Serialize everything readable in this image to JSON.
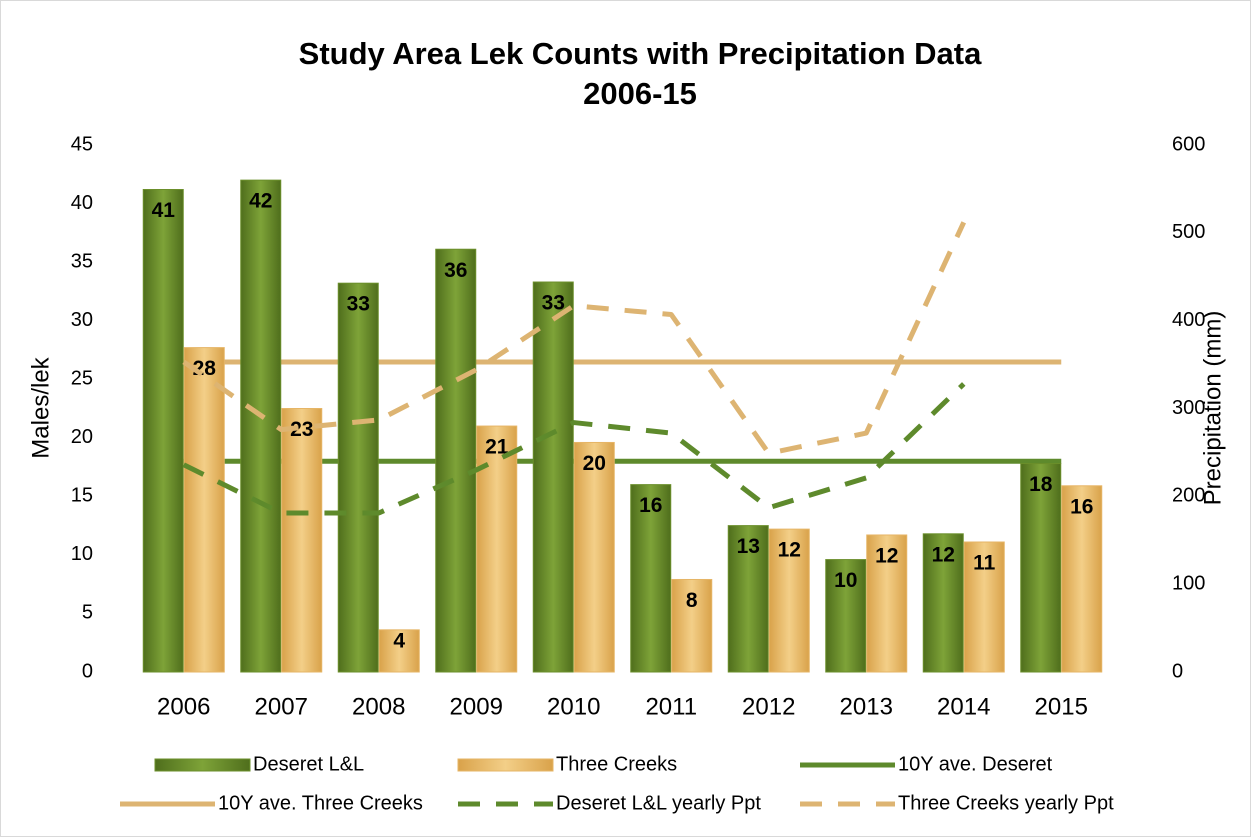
{
  "chart_data": {
    "type": "bar",
    "title": "Study Area Lek Counts with Precipitation Data",
    "subtitle": "2006-15",
    "ylabel": "Males/lek",
    "y2label": "Precipitation (mm)",
    "categories": [
      "2006",
      "2007",
      "2008",
      "2009",
      "2010",
      "2011",
      "2012",
      "2013",
      "2014",
      "2015"
    ],
    "ylim": [
      0,
      45
    ],
    "yticks": [
      0,
      5,
      10,
      15,
      20,
      25,
      30,
      35,
      40,
      45
    ],
    "y2lim": [
      0,
      600
    ],
    "y2ticks": [
      0,
      100,
      200,
      300,
      400,
      500,
      600
    ],
    "series": [
      {
        "name": "Deseret L&L",
        "type": "bar",
        "color": "#6b8f2b",
        "values": [
          41.2,
          42,
          33.2,
          36.1,
          33.3,
          16,
          12.5,
          9.6,
          11.8,
          17.8
        ],
        "value_labels": [
          "41",
          "42",
          "33",
          "36",
          "33",
          "16",
          "13",
          "10",
          "12",
          "18"
        ]
      },
      {
        "name": "Three Creeks",
        "type": "bar",
        "color": "#e6b566",
        "values": [
          27.7,
          22.5,
          3.6,
          21,
          19.6,
          7.9,
          12.2,
          11.7,
          11.1,
          15.9
        ],
        "value_labels": [
          "28",
          "23",
          "4",
          "21",
          "20",
          "8",
          "12",
          "12",
          "11",
          "16"
        ]
      },
      {
        "name": "Deseret L&L yearly Ppt",
        "type": "line",
        "axis": "y2",
        "color": "#5e8a2c",
        "dashed": true,
        "values": [
          236,
          181,
          181,
          230,
          284,
          272,
          187,
          221,
          328,
          null
        ]
      },
      {
        "name": "Three Creeks yearly Ppt",
        "type": "line",
        "axis": "y2",
        "color": "#ddb472",
        "dashed": true,
        "values": [
          353,
          276,
          287,
          344,
          417,
          407,
          249,
          272,
          512,
          null
        ]
      }
    ],
    "reference_lines": [
      {
        "name": "10Y ave. Deseret",
        "axis": "y2",
        "color": "#5e8a2c",
        "value": 240
      },
      {
        "name": "10Y ave. Three Creeks",
        "axis": "y2",
        "color": "#ddb472",
        "value": 353
      }
    ]
  }
}
